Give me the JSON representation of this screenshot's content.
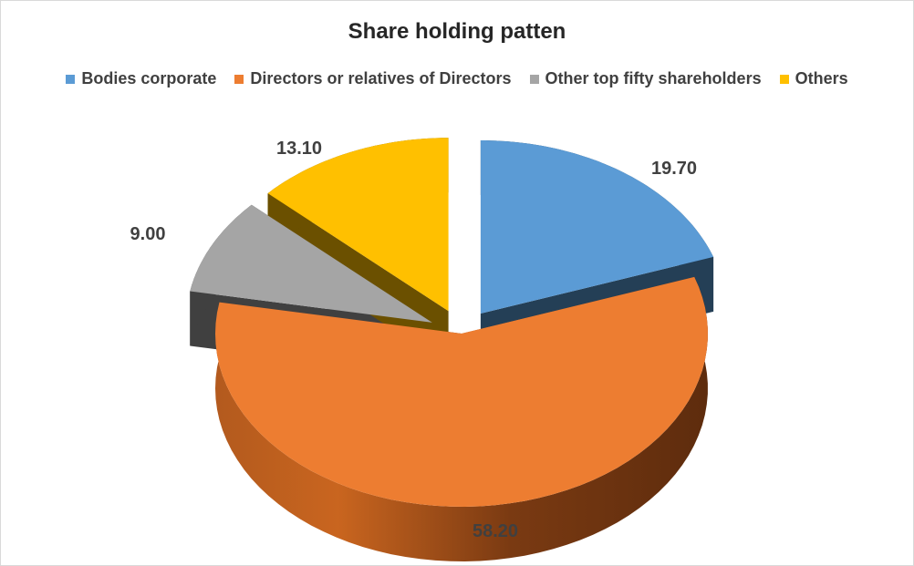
{
  "chart_data": {
    "type": "pie",
    "subtype": "3d-exploded",
    "title": "Share holding patten",
    "legend_position": "top",
    "categories": [
      "Bodies corporate",
      "Directors or relatives of Directors",
      "Other top fifty shareholders",
      "Others"
    ],
    "values": [
      19.7,
      58.2,
      9.0,
      13.1
    ],
    "value_labels": [
      "19.70",
      "58.20",
      "9.00",
      "13.10"
    ],
    "colors": [
      "#5B9BD5",
      "#ED7D31",
      "#A5A5A5",
      "#FFC000"
    ]
  }
}
